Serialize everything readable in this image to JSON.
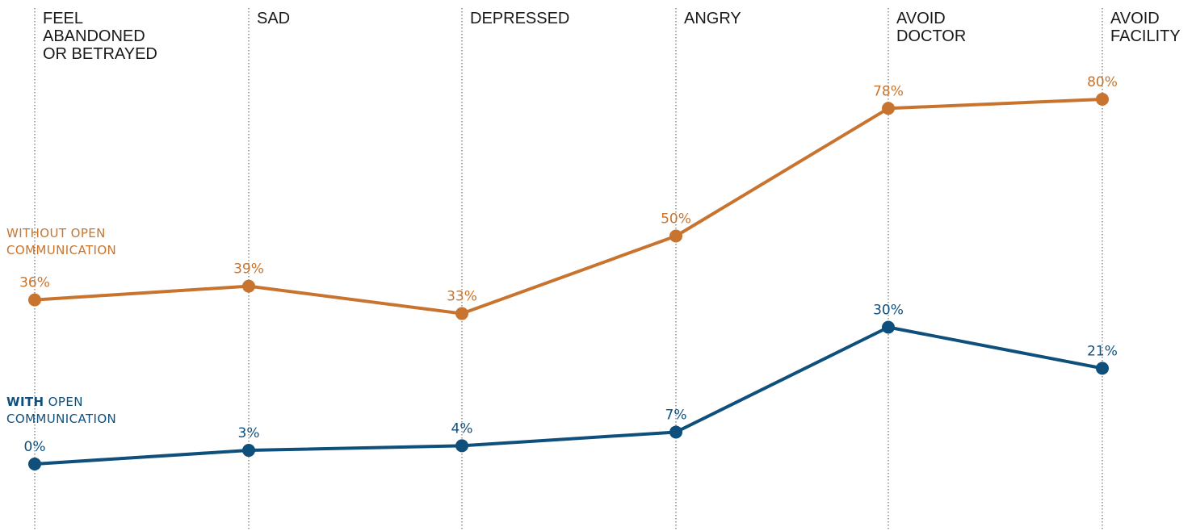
{
  "chart_data": {
    "type": "line",
    "categories": [
      [
        "FEEL",
        "ABANDONED",
        "OR BETRAYED"
      ],
      [
        "SAD"
      ],
      [
        "DEPRESSED"
      ],
      [
        "ANGRY"
      ],
      [
        "AVOID",
        "DOCTOR"
      ],
      [
        "AVOID",
        "FACILITY"
      ]
    ],
    "ylim": [
      0,
      100
    ],
    "series": [
      {
        "name": "WITHOUT OPEN COMMUNICATION",
        "label_lines": [
          [
            {
              "text": "WITHOUT OPEN",
              "bold": false
            }
          ],
          [
            {
              "text": "COMMUNICATION",
              "bold": false
            }
          ]
        ],
        "values": [
          36,
          39,
          33,
          50,
          78,
          80
        ],
        "value_labels": [
          "36%",
          "39%",
          "33%",
          "50%",
          "78%",
          "80%"
        ],
        "color": "#c8742e"
      },
      {
        "name": "WITH OPEN COMMUNICATION",
        "label_lines": [
          [
            {
              "text": "WITH",
              "bold": true
            },
            {
              "text": " OPEN",
              "bold": false
            }
          ],
          [
            {
              "text": "COMMUNICATION",
              "bold": false
            }
          ]
        ],
        "values": [
          0,
          3,
          4,
          7,
          30,
          21
        ],
        "value_labels": [
          "0%",
          "3%",
          "4%",
          "7%",
          "30%",
          "21%"
        ],
        "color": "#0e4f7c"
      }
    ]
  }
}
